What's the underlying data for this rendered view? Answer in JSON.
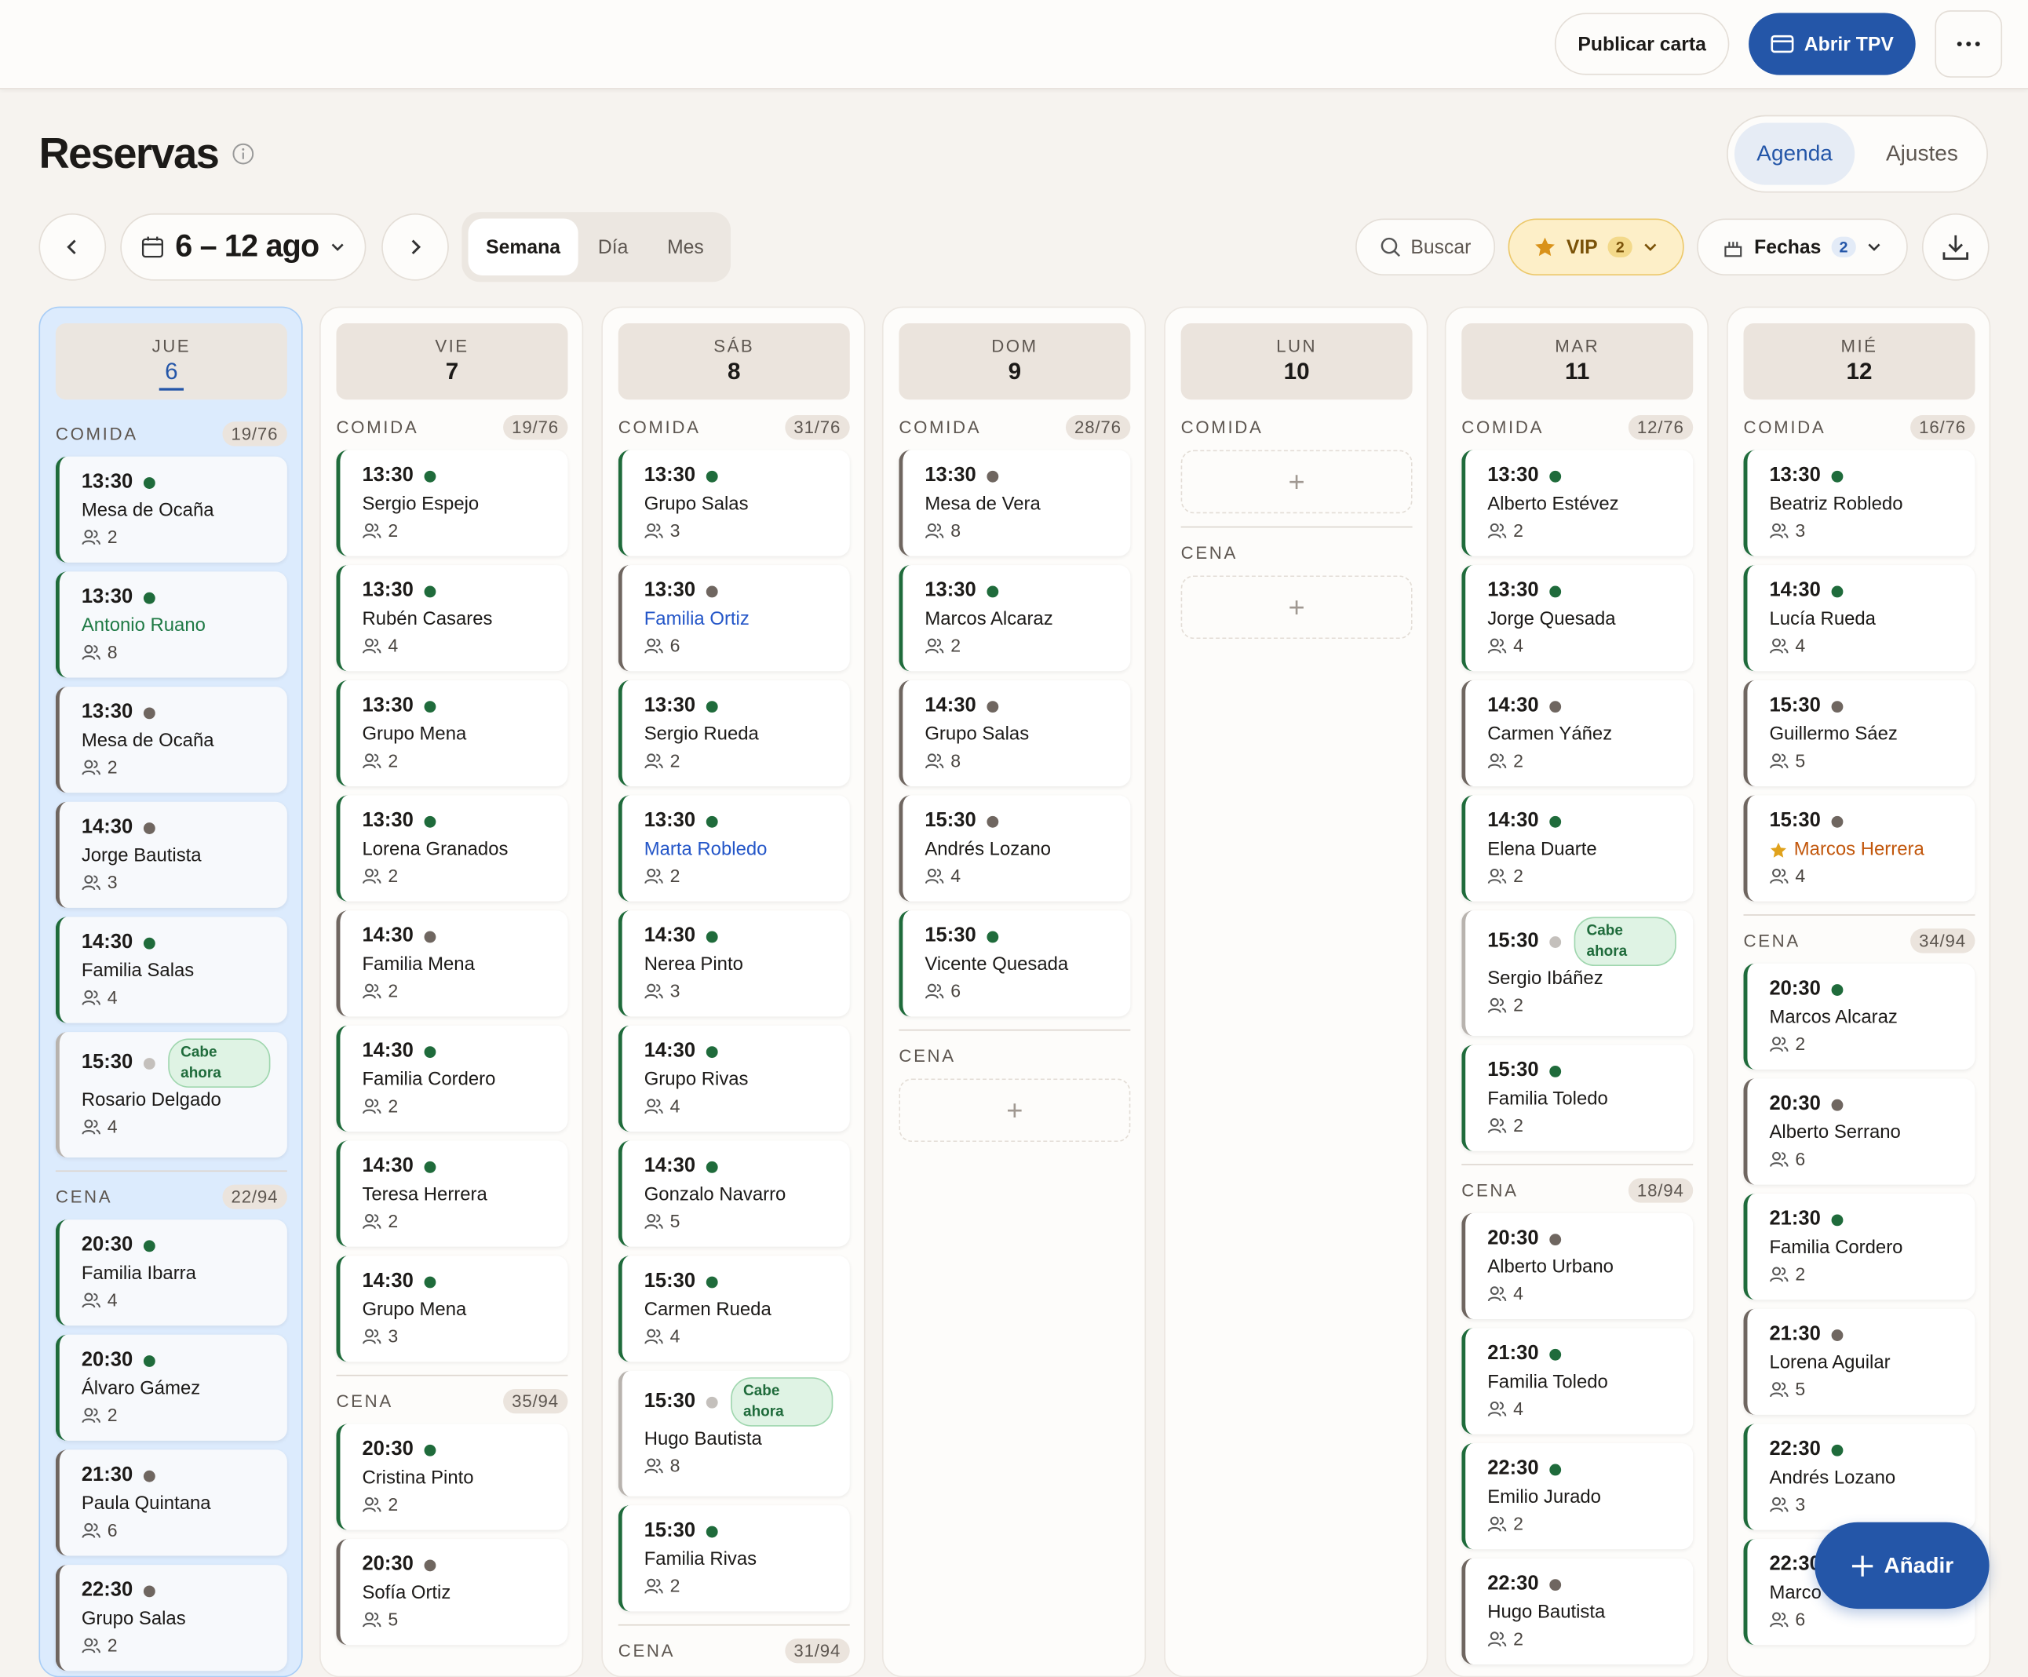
{
  "topbar": {
    "publish": "Publicar carta",
    "tpv": "Abrir TPV"
  },
  "header": {
    "title": "Reservas",
    "tabs": [
      "Agenda",
      "Ajustes"
    ]
  },
  "toolbar": {
    "range": "6 – 12 ago",
    "views": [
      "Semana",
      "Día",
      "Mes"
    ],
    "search": "Buscar",
    "vip": {
      "label": "VIP",
      "count": "2"
    },
    "dates": {
      "label": "Fechas",
      "count": "2"
    }
  },
  "days": [
    {
      "dow": "JUE",
      "num": "6",
      "today": true,
      "sections": [
        {
          "name": "COMIDA",
          "count": "19/76",
          "reservations": [
            {
              "time": "13:30",
              "status": "#1f6b3b",
              "name": "Mesa de Ocaña",
              "guests": "2"
            },
            {
              "time": "13:30",
              "status": "#1f6b3b",
              "name": "Antonio Ruano",
              "name_color": "#1f7a45",
              "guests": "8"
            },
            {
              "time": "13:30",
              "status": "#6f6660",
              "name": "Mesa de Ocaña",
              "guests": "2"
            },
            {
              "time": "14:30",
              "status": "#6f6660",
              "name": "Jorge Bautista",
              "guests": "3"
            },
            {
              "time": "14:30",
              "status": "#1f6b3b",
              "name": "Familia Salas",
              "guests": "4"
            },
            {
              "time": "15:30",
              "status": "#c4c0bc",
              "tag": "Cabe ahora",
              "name": "Rosario Delgado",
              "guests": "4"
            }
          ]
        },
        {
          "name": "CENA",
          "count": "22/94",
          "reservations": [
            {
              "time": "20:30",
              "status": "#1f6b3b",
              "name": "Familia Ibarra",
              "guests": "4"
            },
            {
              "time": "20:30",
              "status": "#1f6b3b",
              "name": "Álvaro Gámez",
              "guests": "2"
            },
            {
              "time": "21:30",
              "status": "#6f6660",
              "name": "Paula Quintana",
              "guests": "6"
            },
            {
              "time": "22:30",
              "status": "#6f6660",
              "name": "Grupo Salas",
              "guests": "2"
            }
          ]
        }
      ]
    },
    {
      "dow": "VIE",
      "num": "7",
      "sections": [
        {
          "name": "COMIDA",
          "count": "19/76",
          "reservations": [
            {
              "time": "13:30",
              "status": "#1f6b3b",
              "name": "Sergio Espejo",
              "guests": "2"
            },
            {
              "time": "13:30",
              "status": "#1f6b3b",
              "name": "Rubén Casares",
              "guests": "4"
            },
            {
              "time": "13:30",
              "status": "#1f6b3b",
              "name": "Grupo Mena",
              "guests": "2"
            },
            {
              "time": "13:30",
              "status": "#1f6b3b",
              "name": "Lorena Granados",
              "guests": "2"
            },
            {
              "time": "14:30",
              "status": "#6f6660",
              "name": "Familia Mena",
              "guests": "2"
            },
            {
              "time": "14:30",
              "status": "#1f6b3b",
              "name": "Familia Cordero",
              "guests": "2"
            },
            {
              "time": "14:30",
              "status": "#1f6b3b",
              "name": "Teresa Herrera",
              "guests": "2"
            },
            {
              "time": "14:30",
              "status": "#1f6b3b",
              "name": "Grupo Mena",
              "guests": "3"
            }
          ]
        },
        {
          "name": "CENA",
          "count": "35/94",
          "reservations": [
            {
              "time": "20:30",
              "status": "#1f6b3b",
              "name": "Cristina Pinto",
              "guests": "2"
            },
            {
              "time": "20:30",
              "status": "#6f6660",
              "name": "Sofía Ortiz",
              "guests": "5"
            }
          ]
        }
      ]
    },
    {
      "dow": "SÁB",
      "num": "8",
      "sections": [
        {
          "name": "COMIDA",
          "count": "31/76",
          "reservations": [
            {
              "time": "13:30",
              "status": "#1f6b3b",
              "name": "Grupo Salas",
              "guests": "3"
            },
            {
              "time": "13:30",
              "status": "#6f6660",
              "name": "Familia Ortiz",
              "name_color": "#2456c8",
              "guests": "6"
            },
            {
              "time": "13:30",
              "status": "#1f6b3b",
              "name": "Sergio Rueda",
              "guests": "2"
            },
            {
              "time": "13:30",
              "status": "#1f6b3b",
              "name": "Marta Robledo",
              "name_color": "#2456c8",
              "guests": "2"
            },
            {
              "time": "14:30",
              "status": "#1f6b3b",
              "name": "Nerea Pinto",
              "guests": "3"
            },
            {
              "time": "14:30",
              "status": "#1f6b3b",
              "name": "Grupo Rivas",
              "guests": "4"
            },
            {
              "time": "14:30",
              "status": "#1f6b3b",
              "name": "Gonzalo Navarro",
              "guests": "5"
            },
            {
              "time": "15:30",
              "status": "#1f6b3b",
              "name": "Carmen Rueda",
              "guests": "4"
            },
            {
              "time": "15:30",
              "status": "#c4c0bc",
              "tag": "Cabe ahora",
              "name": "Hugo Bautista",
              "guests": "8"
            },
            {
              "time": "15:30",
              "status": "#1f6b3b",
              "name": "Familia Rivas",
              "guests": "2"
            }
          ]
        },
        {
          "name": "CENA",
          "count": "31/94",
          "reservations": []
        }
      ]
    },
    {
      "dow": "DOM",
      "num": "9",
      "sections": [
        {
          "name": "COMIDA",
          "count": "28/76",
          "reservations": [
            {
              "time": "13:30",
              "status": "#6f6660",
              "name": "Mesa de Vera",
              "guests": "8"
            },
            {
              "time": "13:30",
              "status": "#1f6b3b",
              "name": "Marcos Alcaraz",
              "guests": "2"
            },
            {
              "time": "14:30",
              "status": "#6f6660",
              "name": "Grupo Salas",
              "guests": "8"
            },
            {
              "time": "15:30",
              "status": "#6f6660",
              "name": "Andrés Lozano",
              "guests": "4"
            },
            {
              "time": "15:30",
              "status": "#1f6b3b",
              "name": "Vicente Quesada",
              "guests": "6"
            }
          ]
        },
        {
          "name": "CENA",
          "reservations": []
        }
      ]
    },
    {
      "dow": "LUN",
      "num": "10",
      "sections": [
        {
          "name": "COMIDA",
          "reservations": []
        },
        {
          "name": "CENA",
          "reservations": []
        }
      ]
    },
    {
      "dow": "MAR",
      "num": "11",
      "sections": [
        {
          "name": "COMIDA",
          "count": "12/76",
          "reservations": [
            {
              "time": "13:30",
              "status": "#1f6b3b",
              "name": "Alberto Estévez",
              "guests": "2"
            },
            {
              "time": "13:30",
              "status": "#1f6b3b",
              "name": "Jorge Quesada",
              "guests": "4"
            },
            {
              "time": "14:30",
              "status": "#6f6660",
              "name": "Carmen Yáñez",
              "guests": "2"
            },
            {
              "time": "14:30",
              "status": "#1f6b3b",
              "name": "Elena Duarte",
              "guests": "2"
            },
            {
              "time": "15:30",
              "status": "#c4c0bc",
              "tag": "Cabe ahora",
              "name": "Sergio Ibáñez",
              "guests": "2"
            },
            {
              "time": "15:30",
              "status": "#1f6b3b",
              "name": "Familia Toledo",
              "guests": "2"
            }
          ]
        },
        {
          "name": "CENA",
          "count": "18/94",
          "reservations": [
            {
              "time": "20:30",
              "status": "#6f6660",
              "name": "Alberto Urbano",
              "guests": "4"
            },
            {
              "time": "21:30",
              "status": "#1f6b3b",
              "name": "Familia Toledo",
              "guests": "4"
            },
            {
              "time": "22:30",
              "status": "#1f6b3b",
              "name": "Emilio Jurado",
              "guests": "2"
            },
            {
              "time": "22:30",
              "status": "#6f6660",
              "name": "Hugo Bautista",
              "guests": "2"
            }
          ]
        }
      ]
    },
    {
      "dow": "MIÉ",
      "num": "12",
      "sections": [
        {
          "name": "COMIDA",
          "count": "16/76",
          "reservations": [
            {
              "time": "13:30",
              "status": "#1f6b3b",
              "name": "Beatriz Robledo",
              "guests": "3"
            },
            {
              "time": "14:30",
              "status": "#1f6b3b",
              "name": "Lucía Rueda",
              "guests": "4"
            },
            {
              "time": "15:30",
              "status": "#6f6660",
              "name": "Guillermo Sáez",
              "guests": "5"
            },
            {
              "time": "15:30",
              "status": "#6f6660",
              "name": "Marcos Herrera",
              "name_color": "#c2570c",
              "vip": true,
              "guests": "4"
            }
          ]
        },
        {
          "name": "CENA",
          "count": "34/94",
          "reservations": [
            {
              "time": "20:30",
              "status": "#1f6b3b",
              "name": "Marcos Alcaraz",
              "guests": "2"
            },
            {
              "time": "20:30",
              "status": "#6f6660",
              "name": "Alberto Serrano",
              "guests": "6"
            },
            {
              "time": "21:30",
              "status": "#1f6b3b",
              "name": "Familia Cordero",
              "guests": "2"
            },
            {
              "time": "21:30",
              "status": "#6f6660",
              "name": "Lorena Aguilar",
              "guests": "5"
            },
            {
              "time": "22:30",
              "status": "#1f6b3b",
              "name": "Andrés Lozano",
              "guests": "3"
            },
            {
              "time": "22:30",
              "status": "#1f6b3b",
              "name": "Marco",
              "guests": "6"
            }
          ]
        }
      ]
    }
  ],
  "fab": "Añadir"
}
